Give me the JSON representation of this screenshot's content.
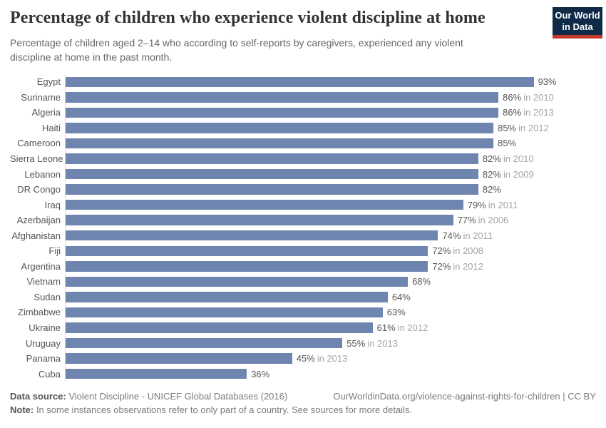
{
  "header": {
    "title": "Percentage of children who experience violent discipline at home",
    "subtitle": "Percentage of children aged 2–14 who according to self-reports by caregivers, experienced any violent discipline at home in the past month.",
    "logo": {
      "line1": "Our World",
      "line2": "in Data"
    }
  },
  "chart_data": {
    "type": "bar",
    "orientation": "horizontal",
    "title": "Percentage of children who experience violent discipline at home",
    "unit": "%",
    "xlim": [
      0,
      100
    ],
    "bar_color": "#6e85af",
    "grid": false,
    "legend": "none",
    "categories": [
      "Egypt",
      "Suriname",
      "Algeria",
      "Haiti",
      "Cameroon",
      "Sierra Leone",
      "Lebanon",
      "DR Congo",
      "Iraq",
      "Azerbaijan",
      "Afghanistan",
      "Fiji",
      "Argentina",
      "Vietnam",
      "Sudan",
      "Zimbabwe",
      "Ukraine",
      "Uruguay",
      "Panama",
      "Cuba"
    ],
    "values": [
      93,
      86,
      86,
      85,
      85,
      82,
      82,
      82,
      79,
      77,
      74,
      72,
      72,
      68,
      64,
      63,
      61,
      55,
      45,
      36
    ],
    "year_notes": [
      "",
      "in 2010",
      "in 2013",
      "in 2012",
      "",
      "in 2010",
      "in 2009",
      "",
      "in 2011",
      "in 2006",
      "in 2011",
      "in 2008",
      "in 2012",
      "",
      "",
      "",
      "in 2012",
      "in 2013",
      "in 2013",
      ""
    ]
  },
  "footer": {
    "datasource_label": "Data source:",
    "datasource_text": " Violent Discipline - UNICEF Global Databases (2016)",
    "link": "OurWorldinData.org/violence-against-rights-for-children | CC BY",
    "note_label": "Note:",
    "note_text": " In some instances observations refer to only part of a country. See sources for more details."
  }
}
